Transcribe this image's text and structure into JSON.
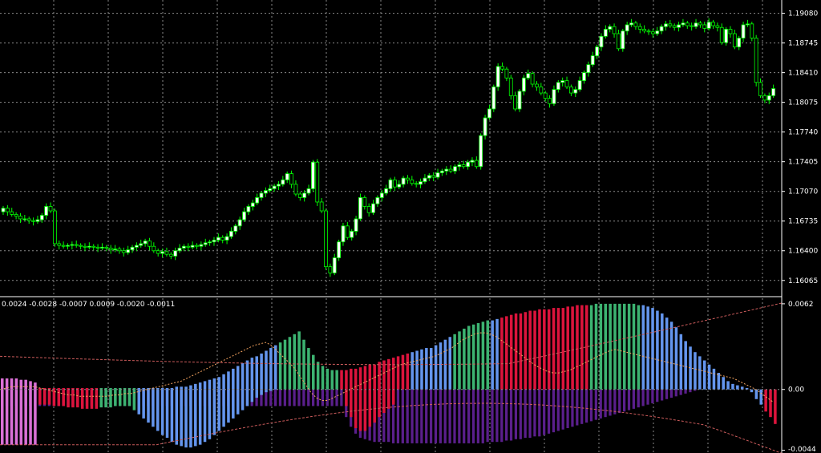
{
  "chart_data": [
    {
      "type": "candlestick",
      "ylim": [
        1.159,
        1.1923
      ],
      "y_ticks": [
        "1.19080",
        "1.18745",
        "1.18410",
        "1.18075",
        "1.17740",
        "1.17405",
        "1.17070",
        "1.16735",
        "1.16400",
        "1.16065"
      ],
      "grid": true,
      "colors": {
        "bull_body": "#ffffff",
        "bear_body": "#000000",
        "wick": "#00ff00",
        "grid": "#8a8a8a",
        "background": "#000000"
      },
      "close": [
        1.1688,
        1.1684,
        1.1681,
        1.1679,
        1.1676,
        1.1676,
        1.1674,
        1.1673,
        1.1675,
        1.168,
        1.169,
        1.1685,
        1.1648,
        1.1646,
        1.1645,
        1.1646,
        1.1647,
        1.1646,
        1.1645,
        1.1644,
        1.1645,
        1.1644,
        1.1643,
        1.1644,
        1.1643,
        1.1641,
        1.1642,
        1.164,
        1.1638,
        1.1641,
        1.1644,
        1.1646,
        1.1648,
        1.1651,
        1.1645,
        1.164,
        1.1637,
        1.1639,
        1.1636,
        1.1634,
        1.164,
        1.1643,
        1.1645,
        1.1644,
        1.1646,
        1.1645,
        1.1647,
        1.1649,
        1.165,
        1.1652,
        1.1655,
        1.1652,
        1.1656,
        1.1662,
        1.1668,
        1.1675,
        1.1684,
        1.169,
        1.1694,
        1.17,
        1.1705,
        1.1708,
        1.171,
        1.1713,
        1.1715,
        1.172,
        1.1727,
        1.1715,
        1.1704,
        1.17,
        1.1705,
        1.171,
        1.174,
        1.1695,
        1.1685,
        1.1622,
        1.1615,
        1.1632,
        1.165,
        1.1668,
        1.1655,
        1.1662,
        1.1676,
        1.17,
        1.169,
        1.1683,
        1.1693,
        1.17,
        1.1705,
        1.171,
        1.172,
        1.1712,
        1.1715,
        1.1722,
        1.172,
        1.1716,
        1.1715,
        1.1718,
        1.1722,
        1.1725,
        1.1723,
        1.1728,
        1.173,
        1.1732,
        1.173,
        1.1735,
        1.1737,
        1.1735,
        1.174,
        1.1742,
        1.1735,
        1.177,
        1.179,
        1.18,
        1.1825,
        1.1848,
        1.1845,
        1.1835,
        1.1815,
        1.18,
        1.182,
        1.1835,
        1.184,
        1.1828,
        1.1825,
        1.1818,
        1.1812,
        1.1806,
        1.1822,
        1.183,
        1.1832,
        1.1825,
        1.1818,
        1.1822,
        1.1832,
        1.1841,
        1.185,
        1.186,
        1.187,
        1.1882,
        1.189,
        1.1893,
        1.1885,
        1.1868,
        1.1888,
        1.1895,
        1.1897,
        1.1893,
        1.189,
        1.1888,
        1.1887,
        1.1885,
        1.1888,
        1.1893,
        1.1896,
        1.1894,
        1.1892,
        1.1895,
        1.1897,
        1.1894,
        1.1893,
        1.1897,
        1.1895,
        1.1891,
        1.1898,
        1.1894,
        1.1892,
        1.1875,
        1.189,
        1.1885,
        1.187,
        1.188,
        1.1895,
        1.1896,
        1.188,
        1.183,
        1.1815,
        1.181,
        1.1815,
        1.1823
      ]
    },
    {
      "type": "histogram",
      "ylim": [
        -0.0046,
        0.0066
      ],
      "y_ticks": [
        "0.0062",
        "0.00",
        "-0.0044"
      ],
      "indicator_values_text": "0.0024 -0.0028 -0.0007 0.0009 -0.0020 -0.0011",
      "colors": {
        "blue": "#6495ed",
        "magenta": "#da70d6",
        "red": "#dc143c",
        "green": "#3cb371",
        "purple": "#5a1f8c",
        "signal": "#f4a460",
        "band": "#cd5c5c"
      },
      "main_color_codes": "MMMMMMMMRRRRRRRRRRRRRGGGGGGGGBBBBBBBBBBBBBBBBBBBBBBBBBBBBBBGGGGGGGGGGGGGRRRRRRRRRRRRRRRBBBBBBBBBGGGGGGGGBBRRRRRRRRRRRRRRRRRRRGGGGGGGGGGGBBBBBBBBBBBBBBBBBBBBBBBBBBRRRRRRRRRRRRRRRRRRRMMMMMMMMMMMMMMMMMRRRR",
      "main": [
        0.0008,
        0.0008,
        0.0008,
        0.0008,
        0.0007,
        0.0007,
        0.0006,
        0.0005,
        0.0001,
        0.0001,
        0.0001,
        0.0001,
        0.0001,
        0.0001,
        0.0001,
        0.0001,
        0.0001,
        0.0001,
        0.0001,
        0.0001,
        0.0001,
        0.0001,
        0.0001,
        0.0001,
        0.0001,
        0.0001,
        0.0001,
        0.0001,
        0.0001,
        0.0001,
        0.0001,
        0.0001,
        0.0001,
        0.0001,
        0.0001,
        0.0001,
        0.0001,
        0.0002,
        0.0002,
        0.0002,
        0.0003,
        0.0004,
        0.0005,
        0.0006,
        0.0007,
        0.0008,
        0.0009,
        0.0011,
        0.0013,
        0.0015,
        0.0017,
        0.0019,
        0.0021,
        0.0023,
        0.0024,
        0.0026,
        0.0028,
        0.003,
        0.0032,
        0.0034,
        0.0036,
        0.0038,
        0.004,
        0.0042,
        0.0036,
        0.003,
        0.0025,
        0.002,
        0.0017,
        0.0015,
        0.0014,
        0.0014,
        0.0014,
        0.0014,
        0.0015,
        0.0015,
        0.0016,
        0.0017,
        0.0018,
        0.0018,
        0.002,
        0.0021,
        0.0022,
        0.0023,
        0.0024,
        0.0025,
        0.0026,
        0.0027,
        0.0028,
        0.0029,
        0.003,
        0.003,
        0.0032,
        0.0034,
        0.0036,
        0.0038,
        0.004,
        0.0042,
        0.0044,
        0.0046,
        0.0047,
        0.0048,
        0.0049,
        0.005,
        0.005,
        0.0051,
        0.0052,
        0.0053,
        0.0054,
        0.0055,
        0.0055,
        0.0056,
        0.0057,
        0.0057,
        0.0058,
        0.0058,
        0.0058,
        0.0059,
        0.0059,
        0.0059,
        0.006,
        0.006,
        0.0061,
        0.0061,
        0.0061,
        0.0061,
        0.0062,
        0.0062,
        0.0062,
        0.0062,
        0.0062,
        0.0062,
        0.0062,
        0.0062,
        0.0062,
        0.0061,
        0.0061,
        0.006,
        0.0059,
        0.0057,
        0.0055,
        0.0052,
        0.0049,
        0.0045,
        0.004,
        0.0035,
        0.0031,
        0.0027,
        0.0024,
        0.0021,
        0.0018,
        0.0015,
        0.0012,
        0.0009,
        0.0006,
        0.0004,
        0.0003,
        0.0002,
        0.0001,
        -0.0002,
        -0.0007,
        -0.0011,
        -0.0016,
        -0.002,
        -0.0025
      ],
      "main_negative": [
        -0.004,
        -0.004,
        -0.004,
        -0.004,
        -0.004,
        -0.004,
        -0.004,
        -0.004,
        -0.0011,
        -0.0011,
        -0.0011,
        -0.0012,
        -0.0012,
        -0.0012,
        -0.0013,
        -0.0013,
        -0.0013,
        -0.0014,
        -0.0014,
        -0.0014,
        -0.0014,
        -0.0013,
        -0.0013,
        -0.0013,
        -0.0012,
        -0.0012,
        -0.0012,
        -0.0012,
        -0.0015,
        -0.0018,
        -0.0021,
        -0.0024,
        -0.0027,
        -0.003,
        -0.0033,
        -0.0035,
        -0.0038,
        -0.004,
        -0.0041,
        -0.0042,
        -0.0042,
        -0.0041,
        -0.004,
        -0.0038,
        -0.0036,
        -0.0033,
        -0.003,
        -0.0027,
        -0.0024,
        -0.0021,
        -0.0018,
        -0.0015,
        -0.0012,
        -0.0009,
        -0.0006,
        -0.0004,
        -0.0002,
        -0.0001,
        0,
        0,
        0,
        0,
        0,
        0,
        0,
        0,
        0,
        0,
        0,
        0,
        0,
        0,
        0,
        -0.0012,
        -0.002,
        -0.0028,
        -0.003,
        -0.003,
        -0.0027,
        -0.0024,
        -0.002,
        -0.0017,
        -0.0014,
        -0.0011,
        0,
        0,
        0,
        0,
        0,
        0,
        0,
        0,
        0,
        0,
        0,
        0,
        0,
        0,
        0,
        0,
        0,
        0,
        0,
        0,
        0,
        0,
        0,
        0,
        0,
        0,
        0,
        0,
        0,
        0,
        0,
        0,
        0,
        0,
        0,
        0,
        0,
        0,
        0,
        0,
        0,
        0,
        0,
        0,
        0,
        0,
        0,
        0,
        0,
        0,
        0,
        0,
        0,
        0,
        0,
        0,
        0,
        0,
        0,
        0,
        0,
        0,
        0,
        0,
        0,
        0,
        0,
        0,
        0,
        0,
        0,
        0,
        0,
        0,
        0,
        0,
        0,
        0,
        0,
        0,
        0,
        0,
        0,
        0,
        0,
        0,
        0,
        0,
        0,
        0,
        0,
        0,
        0,
        0
      ],
      "secondary": [
        -0.0012,
        -0.0012,
        -0.0012,
        -0.0012,
        -0.0012,
        -0.0012,
        -0.0012,
        -0.0012,
        -0.0012,
        -0.0012,
        -0.0012,
        -0.0012,
        -0.0012,
        -0.0012,
        -0.0012,
        -0.0012,
        -0.0012,
        -0.0012,
        -0.0012,
        -0.0012,
        -0.0012,
        -0.0012,
        -0.0012,
        -0.0012,
        -0.0012,
        -0.0012,
        -0.0012,
        -0.0012,
        -0.0012,
        -0.0012,
        -0.0012,
        -0.0012,
        -0.0012,
        -0.0012,
        -0.0012,
        -0.0012,
        -0.0012,
        -0.0012,
        -0.0012,
        -0.0012,
        -0.0012,
        -0.0012,
        -0.0012,
        -0.0012,
        -0.0012,
        -0.0012,
        -0.0012,
        -0.0012,
        -0.0012,
        -0.0012,
        -0.0012,
        -0.0012,
        -0.0012,
        -0.0012,
        -0.0012,
        -0.0012,
        -0.0012,
        -0.0012,
        -0.0012,
        -0.0012,
        -0.0012,
        -0.0012,
        -0.0012,
        -0.0012,
        -0.0012,
        -0.0012,
        -0.0012,
        -0.0012,
        -0.0012,
        -0.0012,
        -0.0012,
        -0.0012,
        -0.0012,
        -0.002,
        -0.0027,
        -0.0032,
        -0.0035,
        -0.0036,
        -0.0037,
        -0.0038,
        -0.0038,
        -0.0038,
        -0.0038,
        -0.0039,
        -0.0039,
        -0.0039,
        -0.0039,
        -0.0039,
        -0.0039,
        -0.0039,
        -0.0039,
        -0.0039,
        -0.0039,
        -0.0039,
        -0.0039,
        -0.0039,
        -0.0039,
        -0.0039,
        -0.0039,
        -0.0039,
        -0.0039,
        -0.0039,
        -0.0039,
        -0.0038,
        -0.0038,
        -0.0038,
        -0.0038,
        -0.0037,
        -0.0037,
        -0.0036,
        -0.0036,
        -0.0035,
        -0.0035,
        -0.0034,
        -0.0034,
        -0.0033,
        -0.0032,
        -0.0031,
        -0.003,
        -0.0029,
        -0.0028,
        -0.0027,
        -0.0026,
        -0.0025,
        -0.0024,
        -0.0023,
        -0.0022,
        -0.0021,
        -0.002,
        -0.0019,
        -0.0018,
        -0.0017,
        -0.0016,
        -0.0015,
        -0.0014,
        -0.0013,
        -0.0012,
        -0.0011,
        -0.001,
        -0.0009,
        -0.0008,
        -0.0007,
        -0.0006,
        -0.0005,
        -0.0004,
        -0.0003,
        -0.0002,
        -0.0001,
        0,
        0,
        0,
        0,
        0,
        0,
        0,
        0,
        0,
        0,
        0,
        0,
        0,
        0,
        0,
        0,
        0,
        0,
        0,
        0,
        0,
        0,
        0,
        0,
        0
      ],
      "signal": [
        0.0,
        0.0001,
        0.0002,
        0.0002,
        0.0002,
        0.0002,
        0.0002,
        0.0001,
        0.0,
        -0.0001,
        -0.0002,
        -0.0003,
        -0.0004,
        -0.0004,
        -0.0005,
        -0.0005,
        -0.0005,
        -0.0005,
        -0.0005,
        -0.0005,
        -0.0004,
        -0.0004,
        -0.0003,
        -0.0003,
        -0.0002,
        -0.0001,
        0.0,
        0.0001,
        0.0002,
        0.0003,
        0.0004,
        0.0005,
        0.0006,
        0.0008,
        0.001,
        0.0012,
        0.0014,
        0.0016,
        0.0018,
        0.002,
        0.0022,
        0.0024,
        0.0026,
        0.0028,
        0.003,
        0.0032,
        0.0033,
        0.0034,
        0.0032,
        0.0028,
        0.0024,
        0.002,
        0.0016,
        0.001,
        0.0004,
        -0.0002,
        -0.0006,
        -0.0008,
        -0.0008,
        -0.0006,
        -0.0004,
        -0.0002,
        0.0,
        0.0002,
        0.0004,
        0.0006,
        0.0008,
        0.001,
        0.0012,
        0.0014,
        0.0016,
        0.0018,
        0.0019,
        0.002,
        0.0021,
        0.0022,
        0.0023,
        0.0024,
        0.0026,
        0.0028,
        0.003,
        0.0033,
        0.0036,
        0.0038,
        0.004,
        0.0041,
        0.0041,
        0.004,
        0.0038,
        0.0035,
        0.0032,
        0.0029,
        0.0026,
        0.0023,
        0.002,
        0.0017,
        0.0015,
        0.0013,
        0.0012,
        0.0012,
        0.0013,
        0.0014,
        0.0016,
        0.0018,
        0.002,
        0.0022,
        0.0024,
        0.0026,
        0.0028,
        0.0029,
        0.0028,
        0.0027,
        0.0026,
        0.0025,
        0.0024,
        0.0023,
        0.0022,
        0.0021,
        0.002,
        0.0019,
        0.0018,
        0.0017,
        0.0016,
        0.0015,
        0.0014,
        0.0013,
        0.0012,
        0.0011,
        0.001,
        0.0009,
        0.0008,
        0.0006,
        0.0004,
        0.0002,
        0.0,
        -0.0003,
        -0.0006,
        -0.0009
      ]
    }
  ]
}
